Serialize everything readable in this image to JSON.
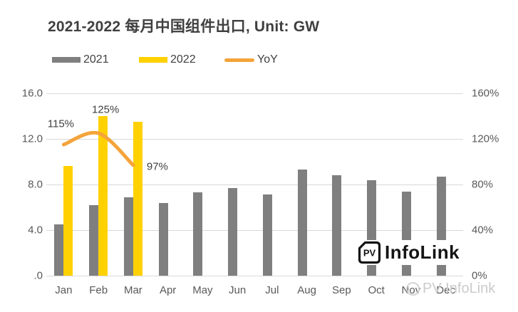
{
  "title": "2021-2022 每月中国组件出口, Unit: GW",
  "legend": {
    "items": [
      {
        "label": "2021",
        "color": "#7f7f7f",
        "type": "bar"
      },
      {
        "label": "2022",
        "color": "#ffd100",
        "type": "bar"
      },
      {
        "label": "YoY",
        "color": "#f4a43b",
        "type": "line"
      }
    ]
  },
  "logo": {
    "icon_text": "PV",
    "text_bold": "Info",
    "text_light": "Link"
  },
  "watermark": {
    "text": "PV InfoLink"
  },
  "chart_data": {
    "type": "bar",
    "title": "2021-2022 每月中国组件出口, Unit: GW",
    "categories": [
      "Jan",
      "Feb",
      "Mar",
      "Apr",
      "May",
      "Jun",
      "Jul",
      "Aug",
      "Sep",
      "Oct",
      "Nov",
      "Dec"
    ],
    "series": [
      {
        "name": "2021",
        "type": "bar",
        "axis": "left",
        "color": "#7f7f7f",
        "values": [
          4.5,
          6.2,
          6.9,
          6.4,
          7.3,
          7.7,
          7.1,
          9.3,
          8.8,
          8.4,
          7.4,
          8.7
        ]
      },
      {
        "name": "2022",
        "type": "bar",
        "axis": "left",
        "color": "#ffd100",
        "values": [
          9.6,
          14.0,
          13.5,
          null,
          null,
          null,
          null,
          null,
          null,
          null,
          null,
          null
        ]
      },
      {
        "name": "YoY",
        "type": "line",
        "axis": "right",
        "color": "#f4a43b",
        "values": [
          115,
          125,
          97,
          null,
          null,
          null,
          null,
          null,
          null,
          null,
          null,
          null
        ],
        "point_labels": [
          "115%",
          "125%",
          "97%"
        ]
      }
    ],
    "left_axis": {
      "min": 0,
      "max": 16,
      "ticks_top_to_bottom": [
        "16.0",
        "12.0",
        "8.0",
        "4.0",
        ".0"
      ]
    },
    "right_axis": {
      "min": 0,
      "max": 160,
      "ticks_top_to_bottom": [
        "160%",
        "120%",
        "80%",
        "40%",
        "0%"
      ]
    },
    "grid": true,
    "legend_position": "top-left",
    "unit": "GW"
  }
}
